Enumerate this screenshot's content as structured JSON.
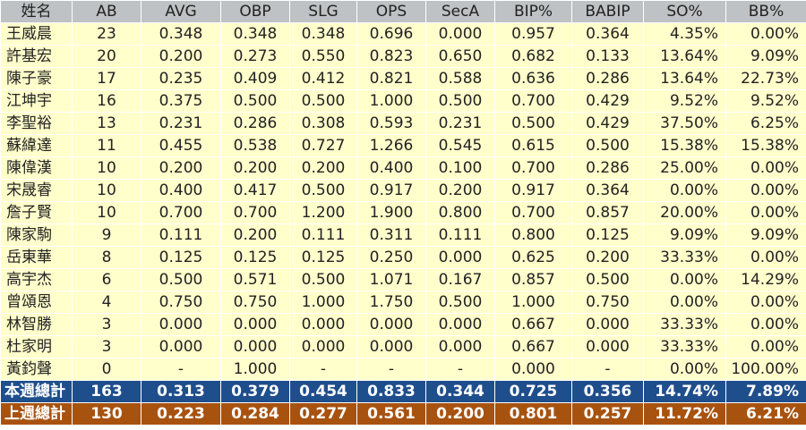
{
  "headers": [
    "姓名",
    "AB",
    "AVG",
    "OBP",
    "SLG",
    "OPS",
    "SecA",
    "BIP%",
    "BABIP",
    "SO%",
    "BB%"
  ],
  "rows": [
    [
      "王威晨",
      "23",
      "0.348",
      "0.348",
      "0.348",
      "0.696",
      "0.000",
      "0.957",
      "0.364",
      "4.35%",
      "0.00%"
    ],
    [
      "許基宏",
      "20",
      "0.200",
      "0.273",
      "0.550",
      "0.823",
      "0.650",
      "0.682",
      "0.133",
      "13.64%",
      "9.09%"
    ],
    [
      "陳子豪",
      "17",
      "0.235",
      "0.409",
      "0.412",
      "0.821",
      "0.588",
      "0.636",
      "0.286",
      "13.64%",
      "22.73%"
    ],
    [
      "江坤宇",
      "16",
      "0.375",
      "0.500",
      "0.500",
      "1.000",
      "0.500",
      "0.700",
      "0.429",
      "9.52%",
      "9.52%"
    ],
    [
      "李聖裕",
      "13",
      "0.231",
      "0.286",
      "0.308",
      "0.593",
      "0.231",
      "0.500",
      "0.429",
      "37.50%",
      "6.25%"
    ],
    [
      "蘇緯達",
      "11",
      "0.455",
      "0.538",
      "0.727",
      "1.266",
      "0.545",
      "0.615",
      "0.500",
      "15.38%",
      "15.38%"
    ],
    [
      "陳偉漢",
      "10",
      "0.200",
      "0.200",
      "0.200",
      "0.400",
      "0.100",
      "0.700",
      "0.286",
      "25.00%",
      "0.00%"
    ],
    [
      "宋晟睿",
      "10",
      "0.400",
      "0.417",
      "0.500",
      "0.917",
      "0.200",
      "0.917",
      "0.364",
      "0.00%",
      "0.00%"
    ],
    [
      "詹子賢",
      "10",
      "0.700",
      "0.700",
      "1.200",
      "1.900",
      "0.800",
      "0.700",
      "0.857",
      "20.00%",
      "0.00%"
    ],
    [
      "陳家駒",
      "9",
      "0.111",
      "0.200",
      "0.111",
      "0.311",
      "0.111",
      "0.800",
      "0.125",
      "9.09%",
      "9.09%"
    ],
    [
      "岳東華",
      "8",
      "0.125",
      "0.125",
      "0.125",
      "0.250",
      "0.000",
      "0.625",
      "0.200",
      "33.33%",
      "0.00%"
    ],
    [
      "高宇杰",
      "6",
      "0.500",
      "0.571",
      "0.500",
      "1.071",
      "0.167",
      "0.857",
      "0.500",
      "0.00%",
      "14.29%"
    ],
    [
      "曾頌恩",
      "4",
      "0.750",
      "0.750",
      "1.000",
      "1.750",
      "0.500",
      "1.000",
      "0.750",
      "0.00%",
      "0.00%"
    ],
    [
      "林智勝",
      "3",
      "0.000",
      "0.000",
      "0.000",
      "0.000",
      "0.000",
      "0.667",
      "0.000",
      "33.33%",
      "0.00%"
    ],
    [
      "杜家明",
      "3",
      "0.000",
      "0.000",
      "0.000",
      "0.000",
      "0.000",
      "0.667",
      "0.000",
      "33.33%",
      "0.00%"
    ],
    [
      "黃鈞聲",
      "0",
      "-",
      "1.000",
      "-",
      "-",
      "-",
      "0.000",
      "-",
      "0.00%",
      "100.00%"
    ]
  ],
  "totals": [
    [
      "本週總計",
      "163",
      "0.313",
      "0.379",
      "0.454",
      "0.833",
      "0.344",
      "0.725",
      "0.356",
      "14.74%",
      "7.89%"
    ],
    [
      "上週總計",
      "130",
      "0.223",
      "0.284",
      "0.277",
      "0.561",
      "0.200",
      "0.801",
      "0.257",
      "11.72%",
      "6.21%"
    ]
  ],
  "colors": {
    "header_bg": "#bfc2c4",
    "row_bg": "#ffffcc",
    "this_week_bg": "#1f4e8c",
    "last_week_bg": "#a8520f"
  }
}
